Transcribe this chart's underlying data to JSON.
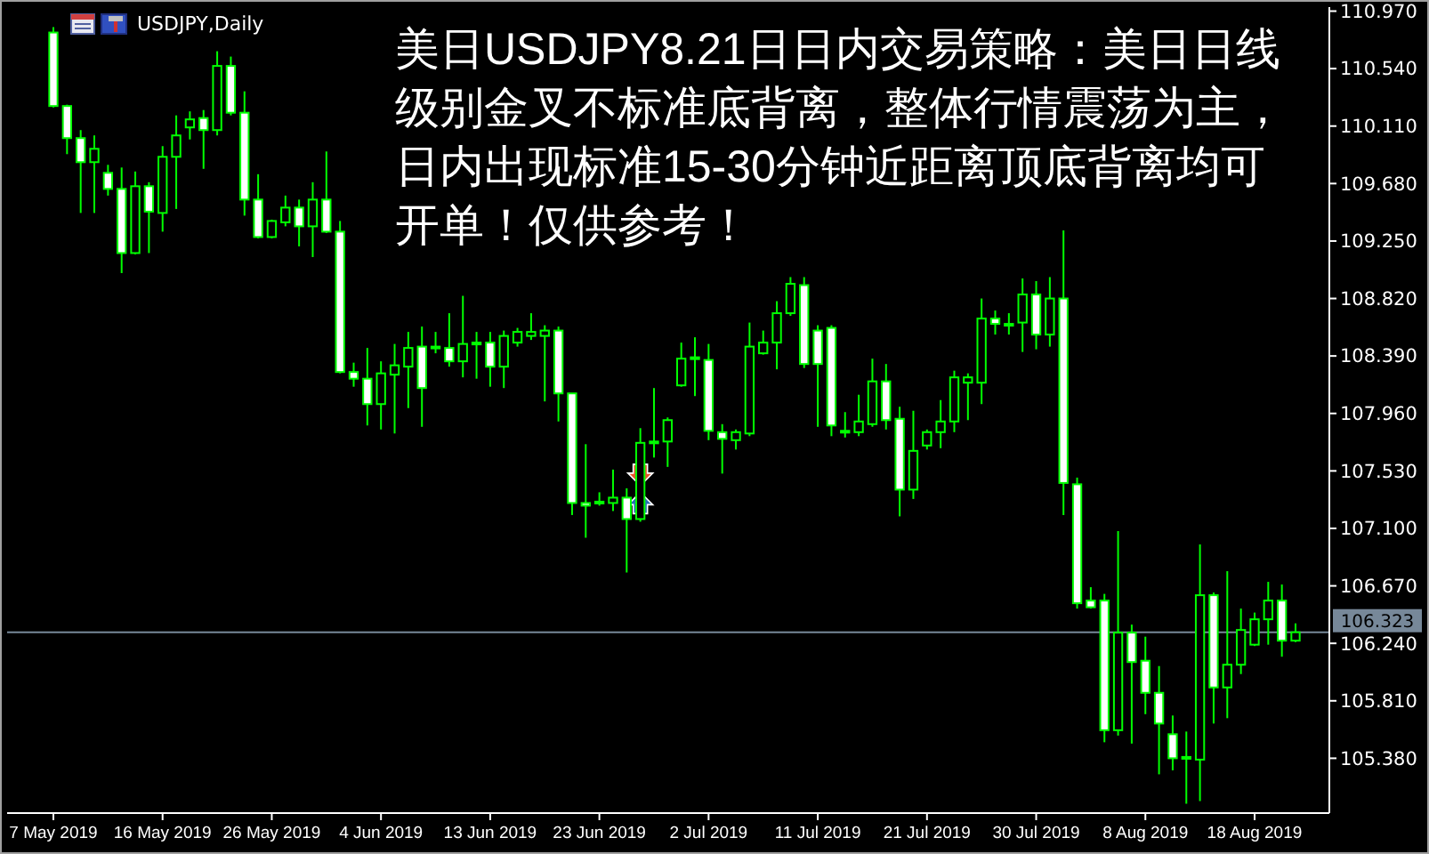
{
  "chart_data": {
    "type": "candlestick",
    "title": "USDJPY,Daily",
    "annotations": [
      "美日USDJPY8.21日日内交易策略：美日日线级别金叉不标准底背离，整体行情震荡为主，日内出现标准15-30分钟近距离顶底背离均可开单！仅供参考！"
    ],
    "categories": [
      "7 May 2019",
      null,
      null,
      null,
      null,
      null,
      null,
      null,
      "16 May 2019",
      null,
      null,
      null,
      null,
      null,
      null,
      null,
      "26 May 2019",
      null,
      null,
      null,
      null,
      null,
      null,
      null,
      "4 Jun 2019",
      null,
      null,
      null,
      null,
      null,
      null,
      null,
      "13 Jun 2019",
      null,
      null,
      null,
      null,
      null,
      null,
      null,
      "23 Jun 2019",
      null,
      null,
      null,
      null,
      null,
      null,
      null,
      "2 Jul 2019",
      null,
      null,
      null,
      null,
      null,
      null,
      null,
      "11 Jul 2019",
      null,
      null,
      null,
      null,
      null,
      null,
      null,
      "21 Jul 2019",
      null,
      null,
      null,
      null,
      null,
      null,
      null,
      "30 Jul 2019",
      null,
      null,
      null,
      null,
      null,
      null,
      null,
      "8 Aug 2019",
      null,
      null,
      null,
      null,
      null,
      null,
      null,
      "18 Aug 2019",
      null,
      null,
      null
    ],
    "color": "#00ff00",
    "ohlc": [
      [
        110.81,
        110.85,
        110.25,
        110.26
      ],
      [
        110.26,
        110.27,
        109.9,
        110.02
      ],
      [
        110.02,
        110.08,
        109.46,
        109.84
      ],
      [
        109.84,
        110.04,
        109.46,
        109.94
      ],
      [
        109.76,
        109.82,
        109.59,
        109.64
      ],
      [
        109.64,
        109.8,
        109.01,
        109.16
      ],
      [
        109.16,
        109.77,
        109.15,
        109.66
      ],
      [
        109.66,
        109.69,
        109.16,
        109.47
      ],
      [
        109.46,
        109.96,
        109.32,
        109.88
      ],
      [
        109.88,
        110.19,
        109.49,
        110.04
      ],
      [
        110.1,
        110.22,
        110.01,
        110.16
      ],
      [
        110.17,
        110.23,
        109.79,
        110.08
      ],
      [
        110.08,
        110.67,
        110.04,
        110.56
      ],
      [
        110.56,
        110.63,
        110.19,
        110.21
      ],
      [
        110.21,
        110.37,
        109.44,
        109.56
      ],
      [
        109.56,
        109.75,
        109.27,
        109.28
      ],
      [
        109.28,
        109.41,
        109.27,
        109.4
      ],
      [
        109.39,
        109.59,
        109.36,
        109.5
      ],
      [
        109.5,
        109.56,
        109.21,
        109.36
      ],
      [
        109.36,
        109.69,
        109.13,
        109.56
      ],
      [
        109.56,
        109.92,
        109.31,
        109.32
      ],
      [
        109.32,
        109.4,
        108.26,
        108.27
      ],
      [
        108.27,
        108.34,
        108.16,
        108.22
      ],
      [
        108.22,
        108.45,
        107.87,
        108.03
      ],
      [
        108.03,
        108.35,
        107.84,
        108.26
      ],
      [
        108.25,
        108.48,
        107.81,
        108.32
      ],
      [
        108.31,
        108.57,
        108.0,
        108.45
      ],
      [
        108.46,
        108.61,
        107.86,
        108.15
      ],
      [
        108.46,
        108.57,
        108.41,
        108.45
      ],
      [
        108.45,
        108.71,
        108.31,
        108.35
      ],
      [
        108.35,
        108.84,
        108.23,
        108.48
      ],
      [
        108.48,
        108.57,
        108.22,
        108.49
      ],
      [
        108.49,
        108.57,
        108.16,
        108.31
      ],
      [
        108.31,
        108.58,
        108.15,
        108.54
      ],
      [
        108.49,
        108.6,
        108.46,
        108.57
      ],
      [
        108.54,
        108.71,
        108.51,
        108.57
      ],
      [
        108.54,
        108.62,
        108.05,
        108.58
      ],
      [
        108.58,
        108.61,
        107.9,
        108.11
      ],
      [
        108.11,
        108.11,
        107.2,
        107.29
      ],
      [
        107.29,
        107.73,
        107.03,
        107.27
      ],
      [
        107.29,
        107.37,
        107.27,
        107.3
      ],
      [
        107.29,
        107.54,
        107.23,
        107.33
      ],
      [
        107.33,
        107.4,
        106.77,
        107.17
      ],
      [
        107.17,
        107.85,
        107.15,
        107.74
      ],
      [
        107.74,
        108.15,
        107.63,
        107.75
      ],
      [
        107.75,
        107.93,
        107.56,
        107.91
      ],
      [
        108.17,
        108.49,
        108.16,
        108.37
      ],
      [
        108.37,
        108.53,
        108.09,
        108.38
      ],
      [
        108.36,
        108.48,
        107.76,
        107.83
      ],
      [
        107.82,
        107.88,
        107.51,
        107.77
      ],
      [
        107.76,
        107.84,
        107.69,
        107.82
      ],
      [
        107.81,
        108.64,
        107.79,
        108.46
      ],
      [
        108.41,
        108.58,
        108.4,
        108.49
      ],
      [
        108.49,
        108.8,
        108.29,
        108.71
      ],
      [
        108.71,
        108.98,
        108.69,
        108.93
      ],
      [
        108.92,
        108.98,
        108.3,
        108.33
      ],
      [
        108.58,
        108.62,
        107.86,
        108.33
      ],
      [
        108.6,
        108.62,
        107.79,
        107.87
      ],
      [
        107.82,
        107.97,
        107.78,
        107.83
      ],
      [
        107.82,
        108.1,
        107.79,
        107.9
      ],
      [
        107.88,
        108.37,
        107.86,
        108.2
      ],
      [
        108.2,
        108.33,
        107.84,
        107.91
      ],
      [
        107.92,
        108.01,
        107.19,
        107.39
      ],
      [
        107.39,
        107.98,
        107.32,
        107.68
      ],
      [
        107.72,
        107.84,
        107.69,
        107.82
      ],
      [
        107.82,
        108.06,
        107.7,
        107.9
      ],
      [
        107.9,
        108.28,
        107.82,
        108.23
      ],
      [
        108.19,
        108.26,
        107.91,
        108.23
      ],
      [
        108.19,
        108.82,
        108.03,
        108.67
      ],
      [
        108.67,
        108.73,
        108.55,
        108.63
      ],
      [
        108.63,
        108.71,
        108.55,
        108.62
      ],
      [
        108.64,
        108.97,
        108.42,
        108.85
      ],
      [
        108.85,
        108.95,
        108.44,
        108.55
      ],
      [
        108.55,
        108.98,
        108.46,
        108.82
      ],
      [
        108.82,
        109.33,
        107.2,
        107.44
      ],
      [
        107.43,
        107.48,
        106.5,
        106.54
      ],
      [
        106.56,
        106.66,
        106.5,
        106.51
      ],
      [
        106.56,
        106.61,
        105.5,
        105.59
      ],
      [
        105.59,
        107.08,
        105.55,
        106.32
      ],
      [
        106.32,
        106.38,
        105.49,
        106.1
      ],
      [
        106.11,
        106.29,
        105.71,
        105.87
      ],
      [
        105.87,
        106.07,
        105.26,
        105.64
      ],
      [
        105.56,
        105.7,
        105.29,
        105.38
      ],
      [
        105.38,
        105.58,
        105.04,
        105.39
      ],
      [
        105.37,
        106.98,
        105.06,
        106.6
      ],
      [
        106.6,
        106.62,
        105.64,
        105.91
      ],
      [
        105.91,
        106.78,
        105.68,
        106.08
      ],
      [
        106.08,
        106.5,
        106.01,
        106.34
      ],
      [
        106.23,
        106.47,
        106.22,
        106.42
      ],
      [
        106.42,
        106.7,
        106.23,
        106.56
      ],
      [
        106.56,
        106.68,
        106.14,
        106.26
      ],
      [
        106.26,
        106.39,
        106.25,
        106.323
      ]
    ],
    "ylim": [
      104.97,
      111.0
    ],
    "yticks": [
      {
        "value": 110.97,
        "label": "110.970"
      },
      {
        "value": 110.54,
        "label": "110.540"
      },
      {
        "value": 110.11,
        "label": "110.110"
      },
      {
        "value": 109.68,
        "label": "109.680"
      },
      {
        "value": 109.25,
        "label": "109.250"
      },
      {
        "value": 108.82,
        "label": "108.820"
      },
      {
        "value": 108.39,
        "label": "108.390"
      },
      {
        "value": 107.96,
        "label": "107.960"
      },
      {
        "value": 107.53,
        "label": "107.530"
      },
      {
        "value": 107.1,
        "label": "107.100"
      },
      {
        "value": 106.67,
        "label": "106.670"
      },
      {
        "value": 106.24,
        "label": "106.240"
      },
      {
        "value": 105.81,
        "label": "105.810"
      },
      {
        "value": 105.38,
        "label": "105.380"
      }
    ],
    "ref_lines": [
      {
        "axis": "y",
        "value": 106.323,
        "label": "106.323",
        "color": "#778899"
      }
    ]
  }
}
